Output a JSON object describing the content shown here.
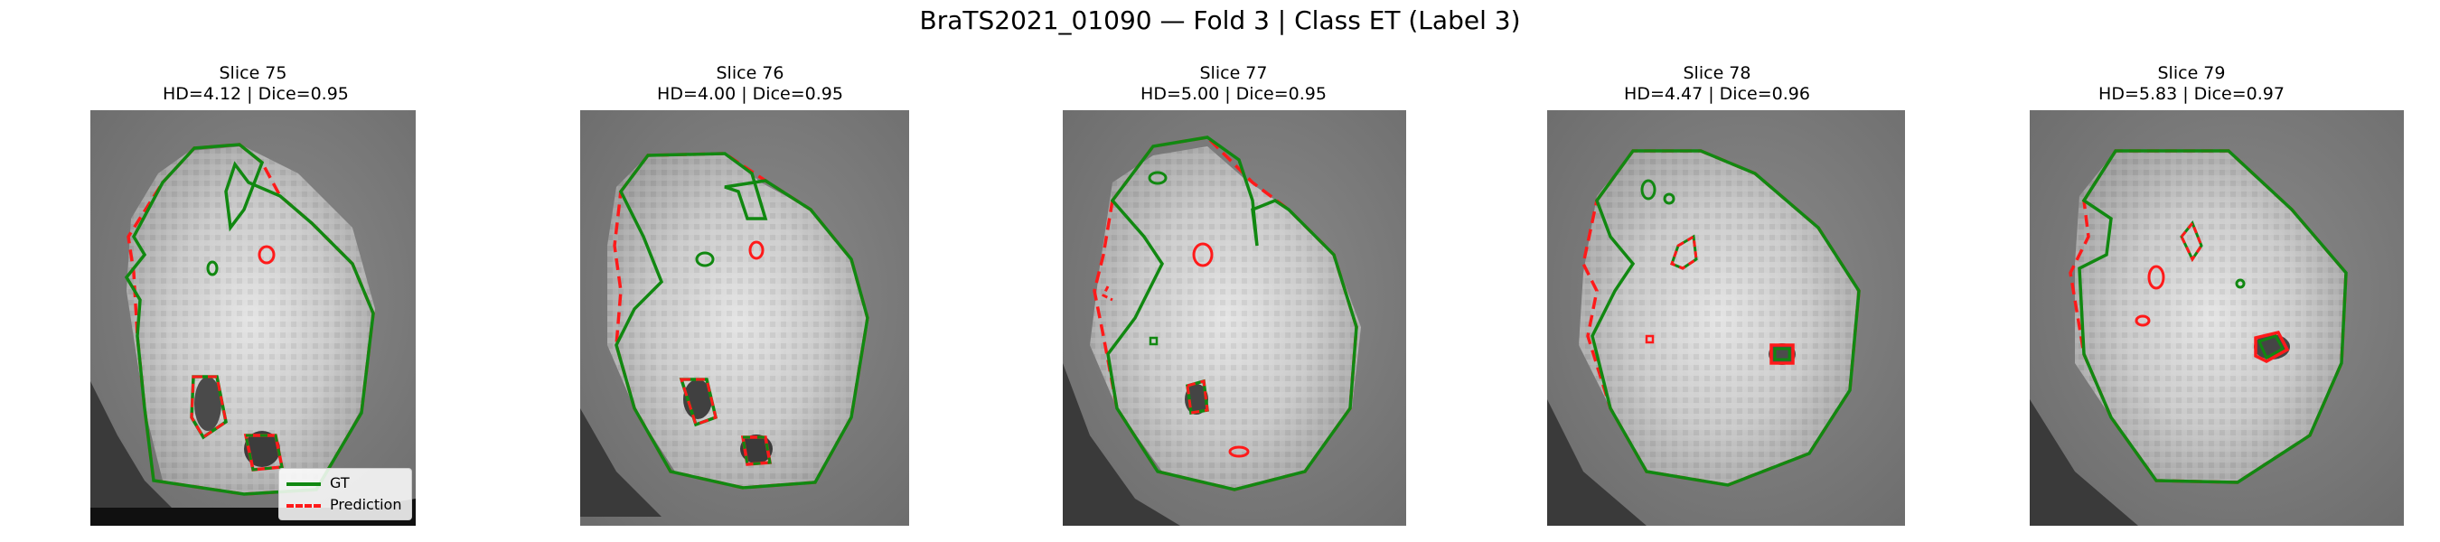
{
  "figure": {
    "title": "BraTS2021_01090 — Fold 3 | Class ET (Label 3)"
  },
  "colors": {
    "gt": "#118811",
    "prediction": "#ff1a1a"
  },
  "legend": {
    "gt_label": "GT",
    "prediction_label": "Prediction"
  },
  "panels": [
    {
      "slice": "Slice 75",
      "metrics": "HD=4.12 | Dice=0.95",
      "hd": 4.12,
      "dice": 0.95
    },
    {
      "slice": "Slice 76",
      "metrics": "HD=4.00 | Dice=0.95",
      "hd": 4.0,
      "dice": 0.95
    },
    {
      "slice": "Slice 77",
      "metrics": "HD=5.00 | Dice=0.95",
      "hd": 5.0,
      "dice": 0.95
    },
    {
      "slice": "Slice 78",
      "metrics": "HD=4.47 | Dice=0.96",
      "hd": 4.47,
      "dice": 0.96
    },
    {
      "slice": "Slice 79",
      "metrics": "HD=5.83 | Dice=0.97",
      "hd": 5.83,
      "dice": 0.97
    }
  ]
}
